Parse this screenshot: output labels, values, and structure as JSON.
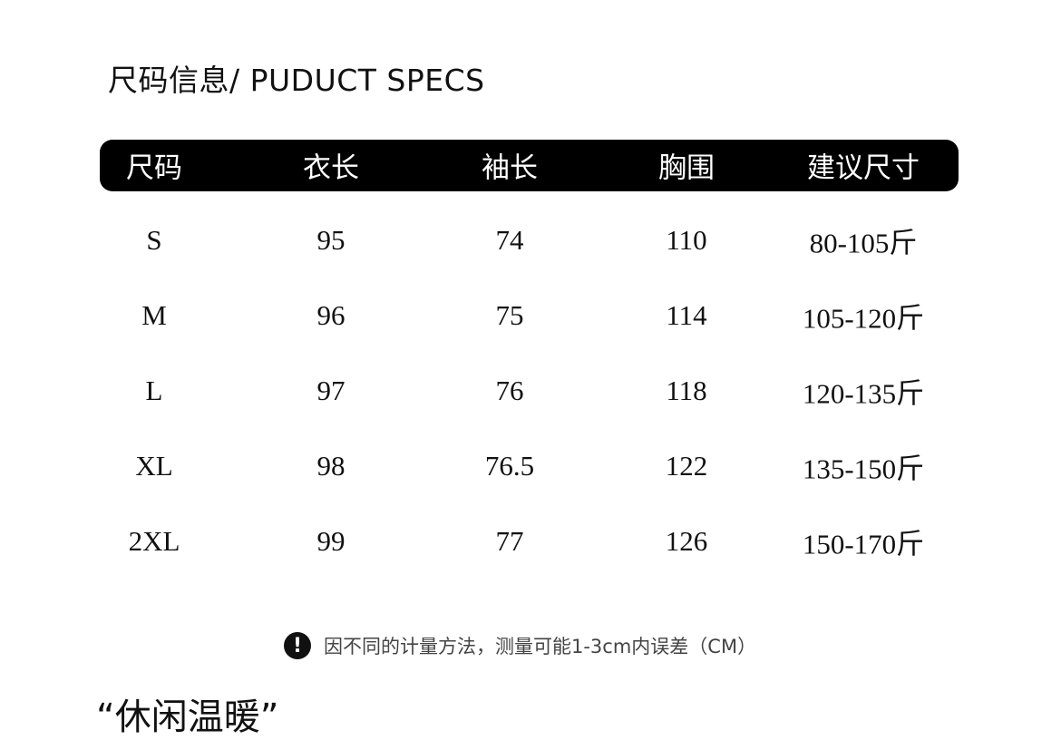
{
  "title": "尺码信息/ PUDUCT SPECS",
  "table": {
    "headers": [
      "尺码",
      "衣长",
      "袖长",
      "胸围",
      "建议尺寸"
    ],
    "rows": [
      [
        "S",
        "95",
        "74",
        "110",
        "80-105斤"
      ],
      [
        "M",
        "96",
        "75",
        "114",
        "105-120斤"
      ],
      [
        "L",
        "97",
        "76",
        "118",
        "120-135斤"
      ],
      [
        "XL",
        "98",
        "76.5",
        "122",
        "135-150斤"
      ],
      [
        "2XL",
        "99",
        "77",
        "126",
        "150-170斤"
      ]
    ]
  },
  "note": {
    "icon": "exclamation-circle-icon",
    "symbol": "!",
    "text": "因不同的计量方法，测量可能1-3cm内误差（CM）"
  },
  "section_heading": "“休闲温暖”"
}
